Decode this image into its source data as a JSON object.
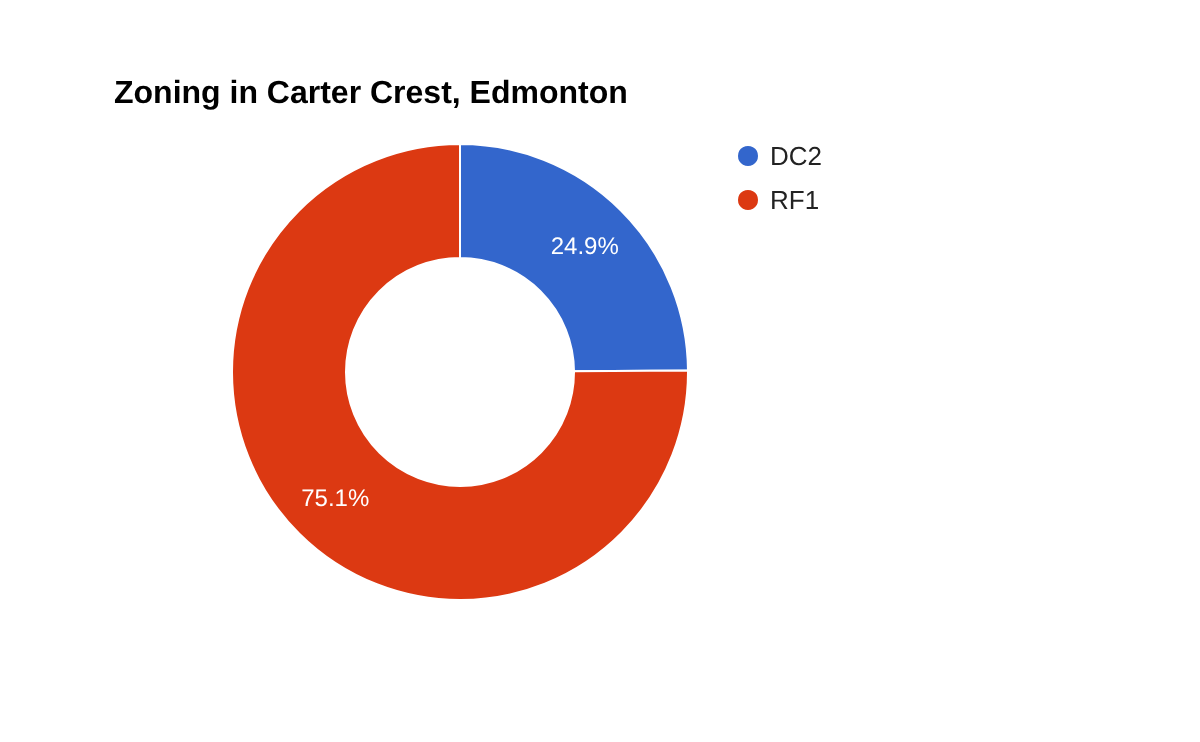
{
  "chart_data": {
    "type": "donut",
    "title": "Zoning in Carter Crest, Edmonton",
    "categories": [
      "DC2",
      "RF1"
    ],
    "values": [
      24.9,
      75.1
    ],
    "colors": [
      "#3366cc",
      "#dc3912"
    ],
    "value_labels": [
      "24.9%",
      "75.1%"
    ],
    "legend": "top right"
  }
}
